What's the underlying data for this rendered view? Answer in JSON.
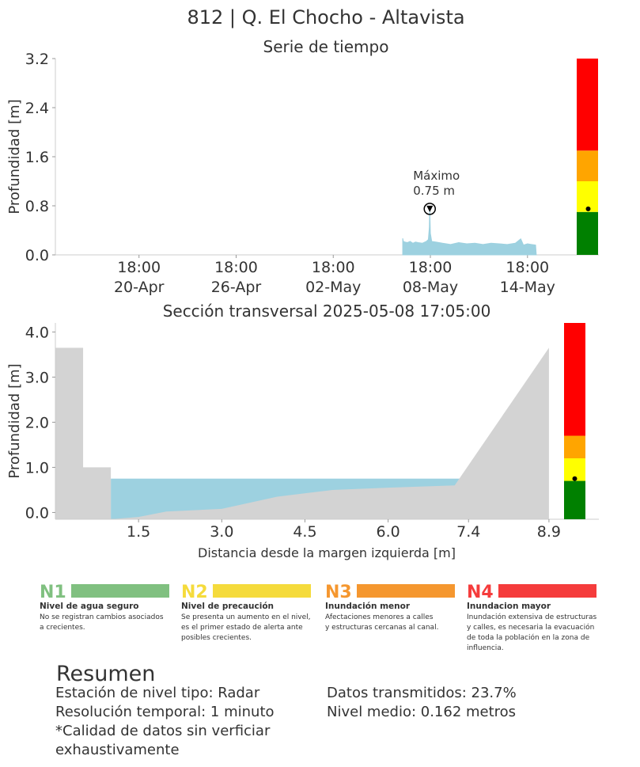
{
  "header": {
    "title": "812 | Q. El Chocho - Altavista",
    "ts_title": "Serie de tiempo",
    "xs_title": "Sección transversal 2025-05-08 17:05:00"
  },
  "chart_data": [
    {
      "type": "area",
      "title": "Serie de tiempo",
      "ylabel": "Profundidad [m]",
      "ylim": [
        0,
        3.2
      ],
      "yticks": [
        "0.0",
        "0.8",
        "1.6",
        "2.4",
        "3.2"
      ],
      "xticks": [
        {
          "time": "18:00",
          "date": "20-Apr"
        },
        {
          "time": "18:00",
          "date": "26-Apr"
        },
        {
          "time": "18:00",
          "date": "02-May"
        },
        {
          "time": "18:00",
          "date": "08-May"
        },
        {
          "time": "18:00",
          "date": "14-May"
        }
      ],
      "x_start": "2025-04-15 14:00",
      "x_end": "2025-05-16 16:00",
      "series": [
        {
          "x": [
            "2025-05-07 01:00",
            "2025-05-07 02:00",
            "2025-05-07 04:00",
            "2025-05-07 08:00",
            "2025-05-07 12:00",
            "2025-05-07 16:00",
            "2025-05-07 20:00",
            "2025-05-08 00:00",
            "2025-05-08 06:00",
            "2025-05-08 12:00",
            "2025-05-08 15:00",
            "2025-05-08 16:30",
            "2025-05-08 17:05",
            "2025-05-08 18:00",
            "2025-05-08 20:00",
            "2025-05-09 02:00",
            "2025-05-09 12:00",
            "2025-05-10 00:00",
            "2025-05-10 12:00",
            "2025-05-11 00:00",
            "2025-05-11 12:00",
            "2025-05-12 00:00",
            "2025-05-12 12:00",
            "2025-05-13 00:00",
            "2025-05-13 12:00",
            "2025-05-14 00:00",
            "2025-05-14 08:00",
            "2025-05-14 12:00",
            "2025-05-14 18:00",
            "2025-05-15 00:00",
            "2025-05-15 06:00",
            "2025-05-15 07:00"
          ],
          "values": [
            0.27,
            0.22,
            0.21,
            0.2,
            0.22,
            0.19,
            0.21,
            0.2,
            0.19,
            0.22,
            0.25,
            0.45,
            0.75,
            0.35,
            0.22,
            0.21,
            0.19,
            0.17,
            0.2,
            0.18,
            0.19,
            0.17,
            0.19,
            0.18,
            0.17,
            0.19,
            0.26,
            0.16,
            0.18,
            0.17,
            0.16,
            0.0
          ]
        }
      ],
      "annotation": {
        "line1": "Máximo",
        "line2": "0.75 m",
        "x": "2025-05-08 17:05",
        "y": 0.75
      },
      "level_bar": {
        "bands": [
          {
            "from": 0.0,
            "to": 0.7,
            "color": "#008000"
          },
          {
            "from": 0.7,
            "to": 1.2,
            "color": "#ffff00"
          },
          {
            "from": 1.2,
            "to": 1.7,
            "color": "#ffa500"
          },
          {
            "from": 1.7,
            "to": 3.2,
            "color": "#ff0000"
          }
        ],
        "current": 0.75
      }
    },
    {
      "type": "area",
      "title": "Sección transversal 2025-05-08 17:05:00",
      "xlabel": "Distancia desde la margen izquierda [m]",
      "ylabel": "Profundidad [m]",
      "ylim": [
        -0.15,
        4.2
      ],
      "yticks": [
        "0.0",
        "1.0",
        "2.0",
        "3.0",
        "4.0"
      ],
      "xticks": [
        "1.5",
        "3.0",
        "4.5",
        "6.0",
        "7.4",
        "8.9"
      ],
      "xlim": [
        0.0,
        9.8
      ],
      "ground_x": [
        0,
        0.5,
        0.5,
        1.0,
        1.0,
        1.5,
        2.0,
        3.0,
        4.0,
        5.0,
        6.0,
        7.2,
        8.9,
        8.9
      ],
      "ground_y": [
        3.65,
        3.65,
        1.0,
        1.0,
        -0.15,
        -0.1,
        0.02,
        0.08,
        0.35,
        0.5,
        0.55,
        0.6,
        3.65,
        -0.15
      ],
      "water_level": 0.75,
      "water_x": [
        1.0,
        7.3
      ],
      "level_bar": {
        "bands": [
          {
            "from": -0.15,
            "to": 0.7,
            "color": "#008000"
          },
          {
            "from": 0.7,
            "to": 1.2,
            "color": "#ffff00"
          },
          {
            "from": 1.2,
            "to": 1.7,
            "color": "#ffa500"
          },
          {
            "from": 1.7,
            "to": 4.2,
            "color": "#ff0000"
          }
        ],
        "current": 0.75
      }
    }
  ],
  "legend": [
    {
      "code": "N1",
      "name": "Nivel de agua seguro",
      "color": "#80c080",
      "code_color": "#80c080",
      "desc": [
        "No se registran cambios asociados",
        "a crecientes."
      ]
    },
    {
      "code": "N2",
      "name": "Nivel de precaución",
      "color": "#f5db3c",
      "code_color": "#f5db3c",
      "desc": [
        "Se presenta un aumento en el nivel,",
        "es el primer estado de alerta ante",
        "posibles crecientes."
      ]
    },
    {
      "code": "N3",
      "name": "Inundación menor",
      "color": "#f5972f",
      "code_color": "#f5972f",
      "desc": [
        "Afectaciones menores a calles",
        "y estructuras cercanas al canal."
      ]
    },
    {
      "code": "N4",
      "name": "Inundacion mayor",
      "color": "#f53c3c",
      "code_color": "#f53c3c",
      "desc": [
        "Inundación extensiva de estructuras",
        "y calles, es necesaria la evacuación",
        "de toda la población en la zona de",
        "influencia."
      ]
    }
  ],
  "summary": {
    "heading": "Resumen",
    "left": [
      "Estación de nivel tipo: Radar",
      "Resolución temporal: 1 minuto",
      "*Calidad de datos sin verficiar",
      "exhaustivamente"
    ],
    "right": [
      "Datos transmitidos: 23.7%",
      "Nivel medio: 0.162 metros"
    ]
  },
  "colors": {
    "water": "#9dd1e0",
    "ground": "#d3d3d3",
    "axis": "#cccccc"
  }
}
